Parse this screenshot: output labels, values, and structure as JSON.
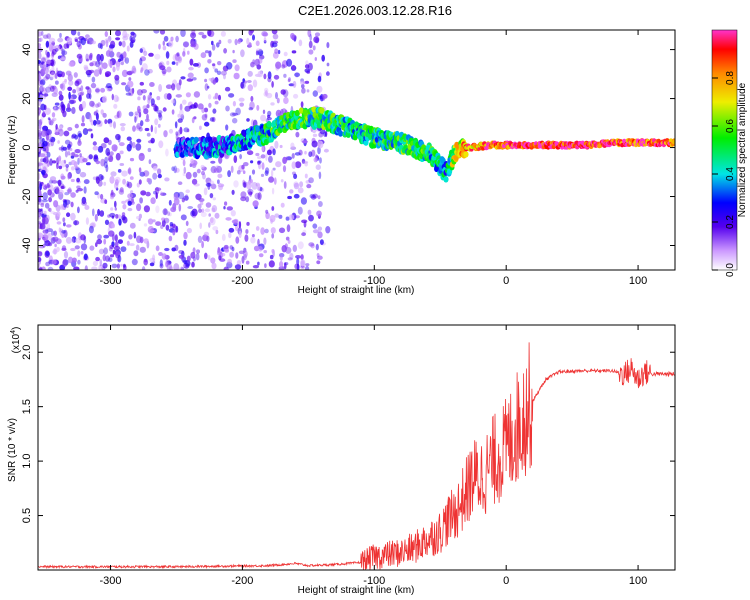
{
  "figure": {
    "title": "C2E1.2026.003.12.28.R16"
  },
  "chart_data": [
    {
      "type": "heatmap",
      "name": "spectrogram",
      "xlabel": "Height of straight line (km)",
      "ylabel": "Frequency (Hz)",
      "xlim": [
        -355,
        128
      ],
      "ylim": [
        -50,
        48
      ],
      "xticks": [
        -300,
        -200,
        -100,
        0,
        100
      ],
      "yticks": [
        -40,
        -20,
        0,
        20,
        40
      ],
      "colorbar": {
        "label": "Normalized spectral amplitude",
        "range": [
          0,
          1
        ],
        "ticks": [
          0.0,
          0.2,
          0.4,
          0.6,
          0.8
        ]
      },
      "ridge": {
        "x": [
          -250,
          -220,
          -200,
          -180,
          -160,
          -140,
          -120,
          -100,
          -80,
          -60,
          -45,
          -40,
          -30,
          -10,
          0,
          20,
          40,
          60,
          80,
          100,
          128
        ],
        "freq": [
          0,
          0,
          3,
          6,
          12,
          12,
          8,
          4,
          2,
          -2,
          -10,
          -3,
          0,
          1,
          1,
          1,
          1,
          1,
          2,
          2,
          2
        ],
        "amplitude": [
          0.25,
          0.3,
          0.4,
          0.45,
          0.5,
          0.5,
          0.45,
          0.45,
          0.5,
          0.5,
          0.35,
          0.6,
          0.8,
          0.85,
          0.9,
          0.95,
          0.95,
          0.95,
          0.9,
          0.9,
          0.9
        ]
      }
    },
    {
      "type": "line",
      "name": "snr",
      "xlabel": "Height of straight line (km)",
      "ylabel": "SNR (10 * v/v)",
      "multiplier": "(x10",
      "multiplier_exp": "4",
      "multiplier_close": ")",
      "xlim": [
        -355,
        128
      ],
      "ylim": [
        0,
        2.25
      ],
      "xticks": [
        -300,
        -200,
        -100,
        0,
        100
      ],
      "yticks": [
        0.5,
        1.0,
        1.5,
        2.0
      ],
      "series": [
        {
          "name": "SNR",
          "color": "#ee3333",
          "x": [
            -355,
            -250,
            -180,
            -160,
            -150,
            -130,
            -110,
            -100,
            -90,
            -80,
            -70,
            -60,
            -50,
            -45,
            -40,
            -35,
            -30,
            -25,
            -20,
            -15,
            -10,
            -5,
            0,
            10,
            20,
            30,
            40,
            60,
            80,
            90,
            95,
            100,
            105,
            110,
            128
          ],
          "y": [
            0.03,
            0.03,
            0.04,
            0.06,
            0.04,
            0.05,
            0.07,
            0.12,
            0.14,
            0.16,
            0.2,
            0.28,
            0.35,
            0.45,
            0.5,
            0.6,
            0.72,
            0.85,
            0.85,
            0.9,
            1.0,
            1.05,
            1.12,
            1.35,
            1.55,
            1.75,
            1.82,
            1.83,
            1.83,
            1.8,
            1.85,
            1.75,
            1.82,
            1.8,
            1.8
          ]
        }
      ]
    }
  ]
}
